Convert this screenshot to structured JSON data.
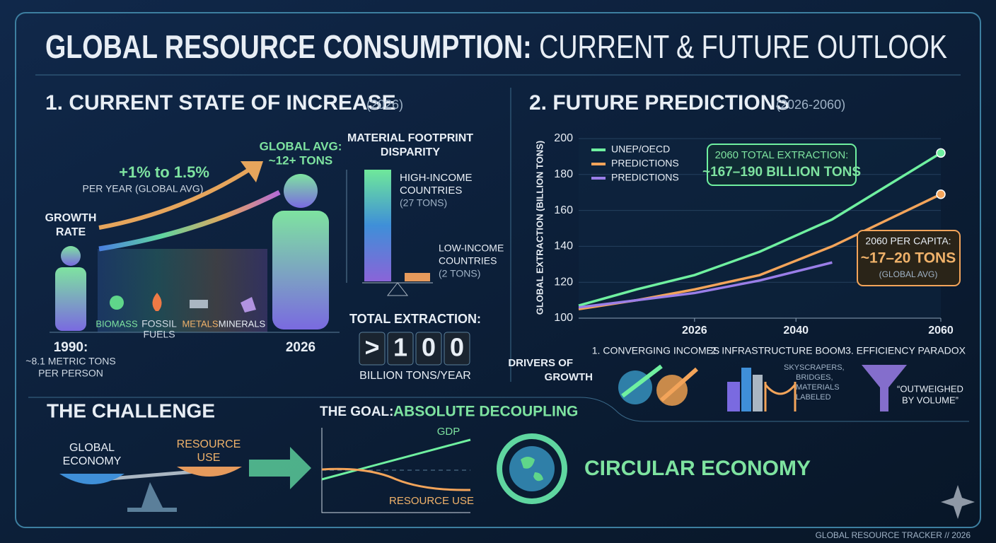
{
  "header": {
    "title": "GLOBAL RESOURCE CONSUMPTION:",
    "title_rest": "CURRENT & FUTURE OUTLOOK"
  },
  "current": {
    "title": "1. CURRENT STATE OF INCREASE",
    "subtitle": "(2026)",
    "growth_label": [
      "GROWTH",
      "RATE"
    ],
    "growth_rate": "+1% to 1.5%",
    "growth_note": "PER YEAR (GLOBAL AVG)",
    "global_avg": [
      "GLOBAL AVG:",
      "~12+ TONS"
    ],
    "categories": [
      "BIOMASS",
      "FOSSIL",
      "FUELS",
      "METALS",
      "MINERALS"
    ],
    "start": [
      "1990:",
      "~8.1 METRIC TONS",
      "PER PERSON"
    ],
    "end_year": "2026",
    "footprint": {
      "title": [
        "MATERIAL FOOTPRINT",
        "DISPARITY"
      ],
      "high": [
        "HIGH-INCOME",
        "COUNTRIES",
        "(27 TONS)"
      ],
      "low": [
        "LOW-INCOME",
        "COUNTRIES",
        "(2 TONS)"
      ]
    },
    "total": {
      "label": "TOTAL EXTRACTION:",
      "digits": [
        ">",
        "1",
        "0",
        "0"
      ],
      "unit": "BILLION TONS/YEAR"
    }
  },
  "chart_data": {
    "type": "line",
    "title": "2. FUTURE PREDICTIONS",
    "subtitle": "(2026-2060)",
    "y_label": "GLOBAL EXTRACTION (BILLION TONS)",
    "x": [
      2010,
      2018,
      2026,
      2035,
      2045,
      2060
    ],
    "series": [
      {
        "name": "UNEP/OECD",
        "color": "#6ff0a0",
        "values": [
          107,
          116,
          124,
          137,
          155,
          192
        ]
      },
      {
        "name": "PREDICTIONS",
        "color": "#f3a45a",
        "values": [
          105,
          110,
          116,
          124,
          140,
          169
        ]
      },
      {
        "name": "PREDICTIONS",
        "color": "#9a7ee8",
        "values": [
          106,
          110,
          114,
          121,
          131,
          null
        ]
      }
    ],
    "xlim": [
      2010,
      2060
    ],
    "xticks": [
      2026,
      2040,
      2060
    ],
    "ylim": [
      100,
      200
    ],
    "yticks": [
      100,
      120,
      140,
      160,
      180,
      200
    ],
    "annotations": [
      {
        "lines": [
          "2060 TOTAL EXTRACTION:",
          "~167–190 BILLION TONS"
        ]
      },
      {
        "lines": [
          "2060 PER CAPITA:",
          "~17–20 TONS",
          "(GLOBAL AVG)"
        ]
      }
    ]
  },
  "drivers": {
    "title": [
      "DRIVERS OF",
      "GROWTH"
    ],
    "items": [
      {
        "title": "1. CONVERGING INCOMES"
      },
      {
        "title": "2. INFRASTRUCTURE BOOM",
        "note": [
          "SKYSCRAPERS,",
          "BRIDGES,",
          "MATERIALS",
          "LABELED"
        ]
      },
      {
        "title": "3. EFFICIENCY PARADOX",
        "note": [
          "“OUTWEIGHED",
          "BY VOLUME”"
        ]
      }
    ]
  },
  "challenge": {
    "title": "THE CHALLENGE",
    "left": [
      "GLOBAL",
      "ECONOMY"
    ],
    "right": [
      "RESOURCE",
      "USE"
    ]
  },
  "goal": {
    "title": "THE GOAL:",
    "title_rest": "ABSOLUTE DECOUPLING",
    "gdp": "GDP",
    "resource": "RESOURCE USE"
  },
  "circular": "CIRCULAR ECONOMY",
  "footer": "GLOBAL RESOURCE TRACKER // 2026"
}
